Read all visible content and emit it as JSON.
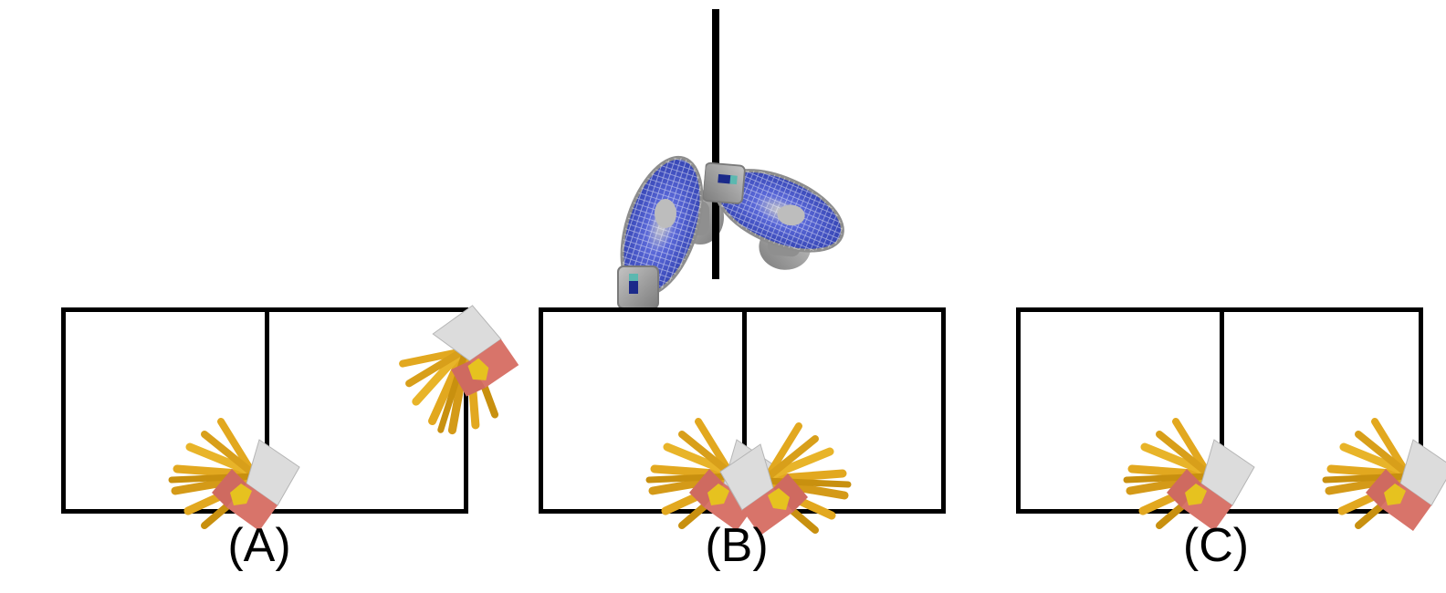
{
  "reference": {
    "left_object": "desk-fan",
    "right_object": "desk-fan"
  },
  "options": [
    {
      "label": "(A)",
      "left_object": "french-fries",
      "right_object": "french-fries"
    },
    {
      "label": "(B)",
      "left_object": "french-fries",
      "right_object": "french-fries"
    },
    {
      "label": "(C)",
      "left_object": "french-fries",
      "right_object": "french-fries"
    }
  ],
  "colors": {
    "fan_blade": "#4a5bd0",
    "fan_body": "#9a9a9a",
    "fry": "#e2a81f",
    "fry_dark": "#b7850f",
    "box_front": "#d8746a",
    "box_side": "#dcdcdc",
    "box_emblem": "#e6c21f"
  }
}
